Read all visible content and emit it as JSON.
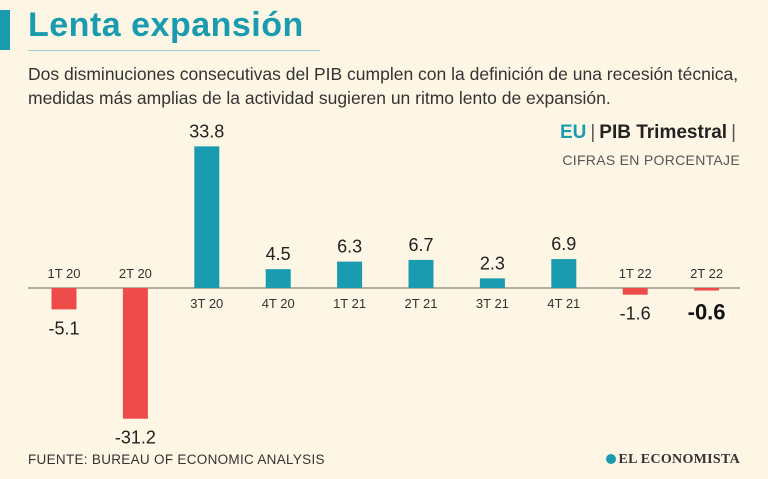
{
  "header": {
    "title": "Lenta expansión",
    "subtitle": "Dos disminuciones consecutivas del PIB cumplen con la definición de una recesión técnica, medidas más amplias de la actividad sugieren un ritmo lento de expansión."
  },
  "legend": {
    "country": "EU",
    "separator": "|",
    "series_label": "PIB Trimestral",
    "units": "CIFRAS EN PORCENTAJE"
  },
  "footer": {
    "source": "FUENTE: BUREAU OF ECONOMIC ANALYSIS",
    "brand": "EL ECONOMISTA"
  },
  "colors": {
    "positive": "#1a9bb0",
    "negative": "#ee4b4b",
    "accent": "#1a9bb0",
    "background": "#fdf6e4"
  },
  "chart_data": {
    "type": "bar",
    "categories": [
      "1T 20",
      "2T 20",
      "3T 20",
      "4T 20",
      "1T 21",
      "2T 21",
      "3T 21",
      "4T 21",
      "1T 22",
      "2T 22"
    ],
    "values": [
      -5.1,
      -31.2,
      33.8,
      4.5,
      6.3,
      6.7,
      2.3,
      6.9,
      -1.6,
      -0.6
    ],
    "value_labels": [
      "-5.1",
      "-31.2",
      "33.8",
      "4.5",
      "6.3",
      "6.7",
      "2.3",
      "6.9",
      "-1.6",
      "-0.6"
    ],
    "highlight_index": 9,
    "ylim": [
      -31.2,
      33.8
    ],
    "grid": false,
    "legend": "top-right"
  }
}
